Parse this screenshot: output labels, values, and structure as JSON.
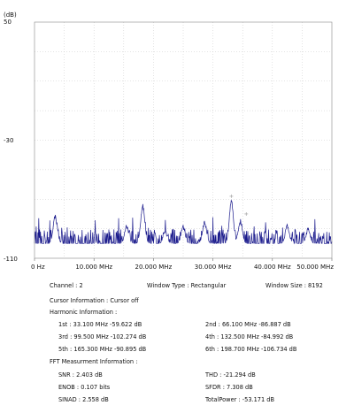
{
  "chart_data": {
    "type": "line",
    "ylabel": "(dB)",
    "ylim": [
      -110,
      50
    ],
    "xlim": [
      0,
      50
    ],
    "y_ticks": [
      {
        "value": 50,
        "label": "50"
      },
      {
        "value": -30,
        "label": "-30"
      },
      {
        "value": -110,
        "label": "-110"
      }
    ],
    "x_ticks": [
      {
        "value": 0,
        "label": "0 Hz"
      },
      {
        "value": 10,
        "label": "10.000 MHz"
      },
      {
        "value": 20,
        "label": "20.000 MHz"
      },
      {
        "value": 30,
        "label": "30.000 MHz"
      },
      {
        "value": 40,
        "label": "40.000 MHz"
      },
      {
        "value": 50,
        "label": "50.000 MHz"
      }
    ],
    "grid": true,
    "series": [
      {
        "color": "#1a1a8c",
        "noise_floor_db": -100,
        "noise_span_db": 12,
        "peaks": [
          {
            "x": 3.5,
            "y": -82
          },
          {
            "x": 15.5,
            "y": -88
          },
          {
            "x": 18.2,
            "y": -75
          },
          {
            "x": 22.0,
            "y": -92
          },
          {
            "x": 25.0,
            "y": -89
          },
          {
            "x": 28.6,
            "y": -86
          },
          {
            "x": 33.1,
            "y": -72
          },
          {
            "x": 34.6,
            "y": -85
          },
          {
            "x": 42.5,
            "y": -89
          },
          {
            "x": 46.0,
            "y": -91
          }
        ]
      }
    ],
    "markers": [
      {
        "x": 33.1,
        "y": -68
      },
      {
        "x": 35.6,
        "y": -80
      }
    ]
  },
  "info": {
    "channel": "Channel : 2",
    "window_type": "Window Type : Rectangular",
    "window_size": "Window Size : 8192",
    "cursor": "Cursor Information :  Cursor off",
    "harmonic_title": "Harmonic Information :",
    "h1": "1st : 33.100 MHz  -59.622 dB",
    "h2": "2nd : 66.100 MHz  -86.887 dB",
    "h3": "3rd : 99.500 MHz  -102.274 dB",
    "h4": "4th : 132.500 MHz  -84.992 dB",
    "h5": "5th : 165.300 MHz  -90.895 dB",
    "h6": "6th : 198.700 MHz  -106.734 dB",
    "fft_title": "FFT Measurment Information :",
    "snr": "SNR :  2.403 dB",
    "thd": "THD : -21.294 dB",
    "enob": "ENOB :  0.107 bits",
    "sfdr": "SFDR :  7.308 dB",
    "sinad": "SINAD :  2.558 dB",
    "total_power": "TotalPower : -53.171 dB"
  }
}
